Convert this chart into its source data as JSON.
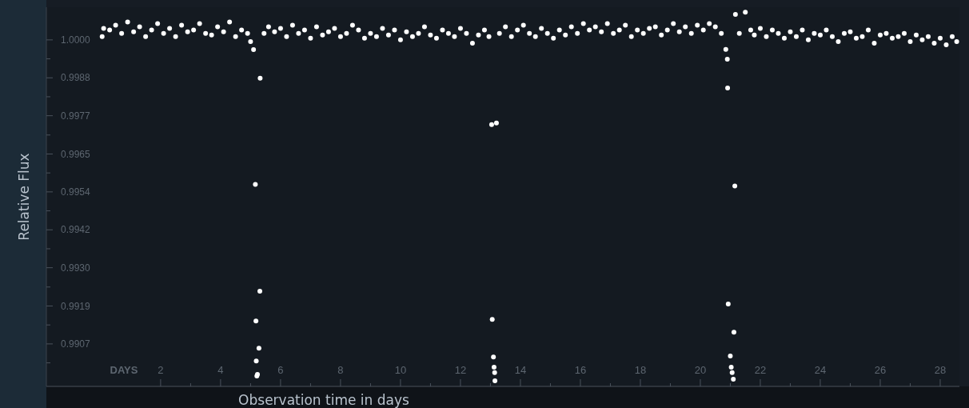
{
  "chart_data": {
    "type": "scatter",
    "xlabel": "Observation time in days",
    "ylabel": "Relative Flux",
    "annotations": [
      "DAYS"
    ],
    "xlim": [
      -1.81,
      28.64
    ],
    "ylim": [
      0.9894,
      1.001
    ],
    "xticks": [
      2,
      {
        "value": 3,
        "label": null
      },
      4,
      {
        "value": 5,
        "label": null
      },
      6,
      {
        "value": 7,
        "label": null
      },
      8,
      {
        "value": 9,
        "label": null
      },
      10,
      {
        "value": 11,
        "label": null
      },
      12,
      {
        "value": 13,
        "label": null
      },
      14,
      {
        "value": 15,
        "label": null
      },
      16,
      {
        "value": 17,
        "label": null
      },
      18,
      {
        "value": 19,
        "label": null
      },
      20,
      {
        "value": 21,
        "label": null
      },
      22,
      {
        "value": 23,
        "label": null
      },
      24,
      {
        "value": 25,
        "label": null
      },
      26,
      {
        "value": 27,
        "label": null
      },
      28
    ],
    "yticks": [
      {
        "value": 1.0,
        "label": "1.0000"
      },
      {
        "value": 0.99942,
        "label": null
      },
      {
        "value": 0.99884,
        "label": "0.9988"
      },
      {
        "value": 0.99826,
        "label": null
      },
      {
        "value": 0.99768,
        "label": "0.9977"
      },
      {
        "value": 0.99709,
        "label": null
      },
      {
        "value": 0.99651,
        "label": "0.9965"
      },
      {
        "value": 0.99593,
        "label": null
      },
      {
        "value": 0.99535,
        "label": "0.9954"
      },
      {
        "value": 0.99477,
        "label": null
      },
      {
        "value": 0.99419,
        "label": "0.9942"
      },
      {
        "value": 0.99361,
        "label": null
      },
      {
        "value": 0.99303,
        "label": "0.9930"
      },
      {
        "value": 0.99244,
        "label": null
      },
      {
        "value": 0.99186,
        "label": "0.9919"
      },
      {
        "value": 0.99128,
        "label": null
      },
      {
        "value": 0.9907,
        "label": "0.9907"
      },
      {
        "value": 0.99012,
        "label": null
      }
    ],
    "marker": "circle",
    "grid": false,
    "series": [
      {
        "color": "#ffffff",
        "x": [
          0.05,
          0.1,
          0.3,
          0.5,
          0.7,
          0.9,
          1.1,
          1.3,
          1.5,
          1.7,
          1.9,
          2.1,
          2.3,
          2.5,
          2.7,
          2.9,
          3.1,
          3.3,
          3.5,
          3.7,
          3.9,
          4.1,
          4.3,
          4.5,
          4.7,
          4.9,
          5.0,
          5.1,
          5.16,
          5.18,
          5.19,
          5.21,
          5.23,
          5.28,
          5.31,
          5.32,
          5.45,
          5.6,
          5.8,
          6.0,
          6.2,
          6.4,
          6.6,
          6.8,
          7.0,
          7.2,
          7.4,
          7.6,
          7.8,
          8.0,
          8.2,
          8.4,
          8.6,
          8.8,
          9.0,
          9.2,
          9.4,
          9.6,
          9.8,
          10.0,
          10.2,
          10.4,
          10.6,
          10.8,
          11.0,
          11.2,
          11.4,
          11.6,
          11.8,
          12.0,
          12.2,
          12.4,
          12.6,
          12.8,
          12.95,
          13.04,
          13.06,
          13.1,
          13.12,
          13.14,
          13.15,
          13.2,
          13.3,
          13.5,
          13.7,
          13.9,
          14.1,
          14.3,
          14.5,
          14.7,
          14.9,
          15.1,
          15.3,
          15.5,
          15.7,
          15.9,
          16.1,
          16.3,
          16.5,
          16.7,
          16.9,
          17.1,
          17.3,
          17.5,
          17.7,
          17.9,
          18.1,
          18.3,
          18.5,
          18.7,
          18.9,
          19.1,
          19.3,
          19.5,
          19.7,
          19.9,
          20.1,
          20.3,
          20.5,
          20.7,
          20.85,
          20.9,
          20.91,
          20.93,
          21.0,
          21.03,
          21.06,
          21.1,
          21.12,
          21.15,
          21.17,
          21.3,
          21.5,
          21.68,
          21.8,
          22.0,
          22.2,
          22.4,
          22.6,
          22.8,
          23.0,
          23.2,
          23.4,
          23.6,
          23.8,
          24.0,
          24.2,
          24.4,
          24.6,
          24.8,
          25.0,
          25.2,
          25.4,
          25.6,
          25.8,
          26.0,
          26.2,
          26.4,
          26.6,
          26.8,
          27.0,
          27.2,
          27.4,
          27.6,
          27.8,
          28.0,
          28.2,
          28.4,
          28.55
        ],
        "values": [
          1.0001,
          1.00035,
          1.0003,
          1.00045,
          1.0002,
          1.00055,
          1.00025,
          1.0004,
          1.0001,
          1.0003,
          1.0005,
          1.0002,
          1.00035,
          1.0001,
          1.00045,
          1.00025,
          1.0003,
          1.0005,
          1.0002,
          1.00015,
          1.0004,
          1.00025,
          1.00055,
          1.0001,
          1.0003,
          1.0002,
          0.99995,
          0.9997,
          0.99558,
          0.9914,
          0.99018,
          0.98972,
          0.98977,
          0.99057,
          0.99231,
          0.99883,
          1.0002,
          1.0004,
          1.00025,
          1.00035,
          1.0001,
          1.00045,
          1.0002,
          1.0003,
          1.00005,
          1.0004,
          1.00015,
          1.00025,
          1.00035,
          1.0001,
          1.0002,
          1.00045,
          1.0003,
          1.00005,
          1.0002,
          1.0001,
          1.00035,
          1.00015,
          1.0003,
          1.0,
          1.00025,
          1.0001,
          1.0002,
          1.0004,
          1.00015,
          1.00005,
          1.0003,
          1.0002,
          1.0001,
          1.00035,
          1.0002,
          0.9999,
          1.00015,
          1.0003,
          1.0001,
          0.99741,
          0.99145,
          0.9903,
          0.98999,
          0.98982,
          0.98957,
          0.99746,
          1.0002,
          1.0004,
          1.0001,
          1.0003,
          1.00045,
          1.0002,
          1.0001,
          1.00035,
          1.0002,
          1.00005,
          1.0003,
          1.00015,
          1.0004,
          1.0002,
          1.0005,
          1.0003,
          1.0004,
          1.00025,
          1.0005,
          1.0002,
          1.0003,
          1.00045,
          1.0001,
          1.0003,
          1.0002,
          1.00035,
          1.0004,
          1.00015,
          1.0003,
          1.0005,
          1.00025,
          1.0004,
          1.0002,
          1.00045,
          1.0003,
          1.0005,
          1.0004,
          1.0002,
          0.99971,
          0.99941,
          0.99853,
          0.99192,
          0.99033,
          0.98999,
          0.98982,
          0.98962,
          0.99106,
          0.99553,
          1.00078,
          1.0002,
          1.00085,
          1.0003,
          1.00015,
          1.00035,
          1.0001,
          1.0003,
          1.0002,
          1.00005,
          1.00025,
          1.0001,
          1.0003,
          1.0,
          1.0002,
          1.00015,
          1.0003,
          1.0001,
          0.99995,
          1.0002,
          1.00025,
          1.00005,
          1.0001,
          1.0003,
          0.9999,
          1.00015,
          1.0002,
          1.00005,
          1.0001,
          1.0002,
          0.99995,
          1.00015,
          1.0,
          1.0001,
          0.9999,
          1.00005,
          0.99985,
          1.0001,
          0.99995
        ]
      }
    ]
  }
}
